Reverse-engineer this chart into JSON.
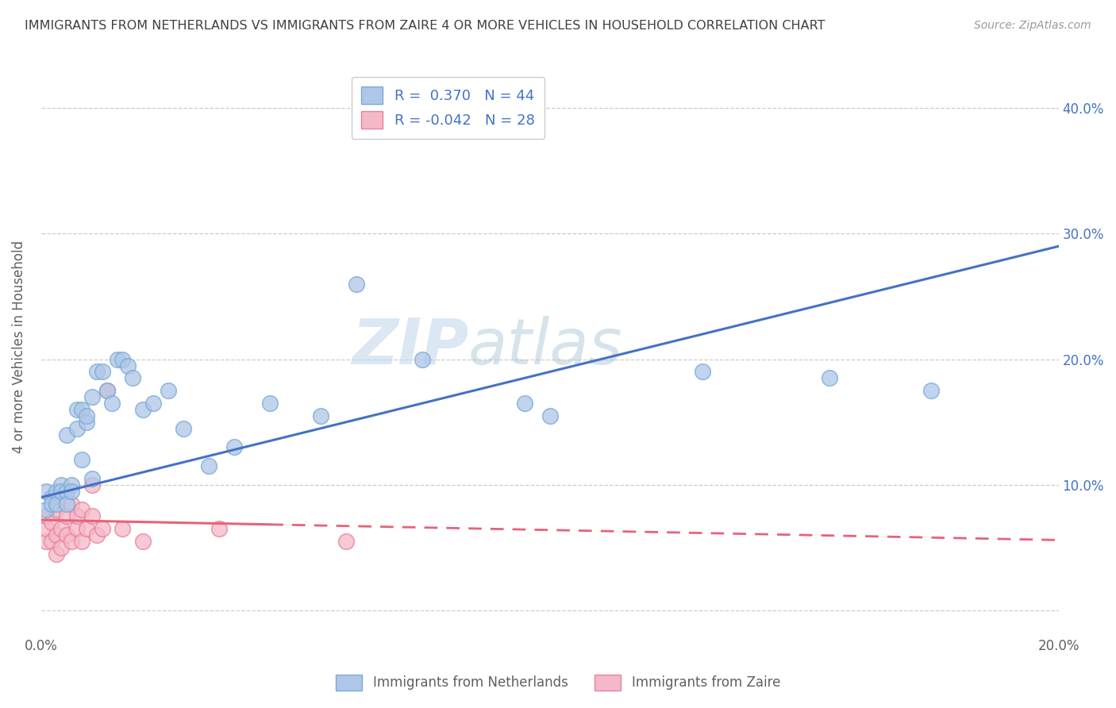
{
  "title": "IMMIGRANTS FROM NETHERLANDS VS IMMIGRANTS FROM ZAIRE 4 OR MORE VEHICLES IN HOUSEHOLD CORRELATION CHART",
  "source": "Source: ZipAtlas.com",
  "ylabel": "4 or more Vehicles in Household",
  "xmin": 0.0,
  "xmax": 0.2,
  "ymin": -0.02,
  "ymax": 0.44,
  "xticks": [
    0.0,
    0.05,
    0.1,
    0.15,
    0.2
  ],
  "yticks": [
    0.0,
    0.1,
    0.2,
    0.3,
    0.4
  ],
  "netherlands_R": 0.37,
  "netherlands_N": 44,
  "zaire_R": -0.042,
  "zaire_N": 28,
  "netherlands_color": "#aec6e8",
  "netherlands_edge": "#7aaad4",
  "zaire_color": "#f5b8c8",
  "zaire_edge": "#e8819a",
  "netherlands_line_color": "#4472c4",
  "zaire_line_color": "#e8627a",
  "legend_label1": "Immigrants from Netherlands",
  "legend_label2": "Immigrants from Zaire",
  "watermark_zip": "ZIP",
  "watermark_atlas": "atlas",
  "netherlands_x": [
    0.001,
    0.001,
    0.002,
    0.002,
    0.003,
    0.003,
    0.004,
    0.004,
    0.005,
    0.005,
    0.005,
    0.006,
    0.006,
    0.007,
    0.007,
    0.008,
    0.008,
    0.009,
    0.009,
    0.01,
    0.01,
    0.011,
    0.012,
    0.013,
    0.014,
    0.015,
    0.016,
    0.017,
    0.018,
    0.02,
    0.022,
    0.025,
    0.028,
    0.033,
    0.038,
    0.045,
    0.055,
    0.062,
    0.075,
    0.095,
    0.1,
    0.13,
    0.155,
    0.175
  ],
  "netherlands_y": [
    0.08,
    0.095,
    0.09,
    0.085,
    0.095,
    0.085,
    0.1,
    0.095,
    0.14,
    0.095,
    0.085,
    0.1,
    0.095,
    0.145,
    0.16,
    0.12,
    0.16,
    0.15,
    0.155,
    0.17,
    0.105,
    0.19,
    0.19,
    0.175,
    0.165,
    0.2,
    0.2,
    0.195,
    0.185,
    0.16,
    0.165,
    0.175,
    0.145,
    0.115,
    0.13,
    0.165,
    0.155,
    0.26,
    0.2,
    0.165,
    0.155,
    0.19,
    0.185,
    0.175
  ],
  "zaire_x": [
    0.001,
    0.001,
    0.001,
    0.002,
    0.002,
    0.003,
    0.003,
    0.003,
    0.004,
    0.004,
    0.005,
    0.005,
    0.006,
    0.006,
    0.007,
    0.007,
    0.008,
    0.008,
    0.009,
    0.01,
    0.01,
    0.011,
    0.012,
    0.013,
    0.016,
    0.02,
    0.035,
    0.06
  ],
  "zaire_y": [
    0.055,
    0.065,
    0.075,
    0.055,
    0.07,
    0.045,
    0.06,
    0.08,
    0.05,
    0.065,
    0.06,
    0.075,
    0.055,
    0.085,
    0.065,
    0.075,
    0.055,
    0.08,
    0.065,
    0.075,
    0.1,
    0.06,
    0.065,
    0.175,
    0.065,
    0.055,
    0.065,
    0.055
  ],
  "background_color": "#ffffff",
  "grid_color": "#cccccc",
  "title_color": "#404040",
  "axis_color": "#606060",
  "label_color": "#4472c4",
  "nl_line_intercept": 0.09,
  "nl_line_slope": 1.0,
  "za_line_intercept": 0.072,
  "za_line_slope": -0.08
}
